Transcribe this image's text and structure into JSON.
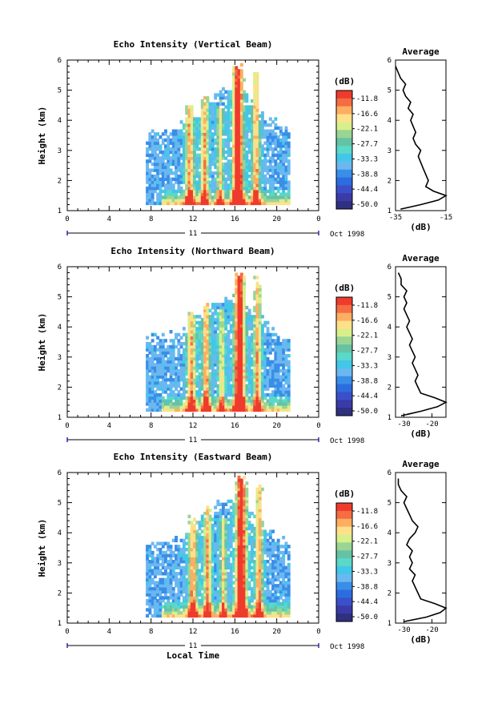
{
  "colorbar": {
    "unit": "(dB)",
    "labels": [
      "-11.8",
      "-16.6",
      "-22.1",
      "-27.7",
      "-33.3",
      "-38.8",
      "-44.4",
      "-50.0"
    ],
    "colors": [
      "#ef3b2c",
      "#f46d43",
      "#fdae61",
      "#fee08b",
      "#d9ef8b",
      "#99d594",
      "#66c2a5",
      "#5ad8c8",
      "#42c7e8",
      "#6bb8f0",
      "#3a8ee8",
      "#2b6dde",
      "#3b50c8",
      "#3a3aa8",
      "#303080"
    ]
  },
  "chart_data": [
    {
      "type": "heatmap",
      "title": "Echo Intensity (Vertical Beam)",
      "ylabel": "Height (km)",
      "xlabel": "",
      "x_ticks": [
        "0",
        "4",
        "8",
        "12",
        "16",
        "20",
        "0"
      ],
      "y_ticks": [
        "1",
        "2",
        "3",
        "4",
        "5",
        "6"
      ],
      "xlim": [
        0,
        24
      ],
      "ylim": [
        1,
        6
      ],
      "date_label": "11",
      "month_label": "Oct 1998",
      "average": {
        "title": "Average",
        "xlabel": "(dB)",
        "x_ticks": [
          "-35",
          "-15"
        ],
        "xlim": [
          -35,
          -15
        ],
        "y_ticks": [
          "1",
          "2",
          "3",
          "4",
          "5",
          "6"
        ],
        "height_km": [
          1.05,
          1.2,
          1.35,
          1.5,
          1.65,
          1.8,
          2.0,
          2.2,
          2.4,
          2.6,
          2.8,
          3.0,
          3.2,
          3.4,
          3.6,
          3.8,
          4.0,
          4.2,
          4.4,
          4.6,
          4.8,
          5.0,
          5.2,
          5.4,
          5.6,
          5.8
        ],
        "db": [
          -33,
          -25,
          -18,
          -15,
          -20,
          -23,
          -22,
          -23,
          -24,
          -25,
          -26,
          -25,
          -27,
          -28,
          -27,
          -28,
          -29,
          -28,
          -30,
          -29,
          -31,
          -32,
          -31,
          -33,
          -34,
          -35
        ]
      }
    },
    {
      "type": "heatmap",
      "title": "Echo Intensity (Northward Beam)",
      "ylabel": "Height (km)",
      "xlabel": "",
      "x_ticks": [
        "0",
        "4",
        "8",
        "12",
        "16",
        "20",
        "0"
      ],
      "y_ticks": [
        "1",
        "2",
        "3",
        "4",
        "5",
        "6"
      ],
      "xlim": [
        0,
        24
      ],
      "ylim": [
        1,
        6
      ],
      "date_label": "11",
      "month_label": "Oct 1998",
      "average": {
        "title": "Average",
        "xlabel": "(dB)",
        "x_ticks": [
          "-30",
          "-20"
        ],
        "xlim": [
          -33,
          -15
        ],
        "y_ticks": [
          "1",
          "2",
          "3",
          "4",
          "5",
          "6"
        ],
        "height_km": [
          1.05,
          1.2,
          1.35,
          1.5,
          1.65,
          1.8,
          2.0,
          2.2,
          2.4,
          2.6,
          2.8,
          3.0,
          3.2,
          3.4,
          3.6,
          3.8,
          4.0,
          4.2,
          4.4,
          4.6,
          4.8,
          5.0,
          5.2,
          5.4,
          5.6,
          5.8
        ],
        "db": [
          -31,
          -24,
          -18,
          -15,
          -19,
          -24,
          -25,
          -26,
          -25,
          -26,
          -27,
          -26,
          -27,
          -28,
          -27,
          -28,
          -29,
          -28,
          -29,
          -30,
          -29,
          -30,
          -29,
          -31,
          -31,
          -32
        ]
      }
    },
    {
      "type": "heatmap",
      "title": "Echo Intensity (Eastward Beam)",
      "ylabel": "Height (km)",
      "xlabel": "Local Time",
      "x_ticks": [
        "0",
        "4",
        "8",
        "12",
        "16",
        "20",
        "0"
      ],
      "y_ticks": [
        "1",
        "2",
        "3",
        "4",
        "5",
        "6"
      ],
      "xlim": [
        0,
        24
      ],
      "ylim": [
        1,
        6
      ],
      "date_label": "11",
      "month_label": "Oct 1998",
      "average": {
        "title": "Average",
        "xlabel": "(dB)",
        "x_ticks": [
          "-30",
          "-20"
        ],
        "xlim": [
          -33,
          -15
        ],
        "y_ticks": [
          "1",
          "2",
          "3",
          "4",
          "5",
          "6"
        ],
        "height_km": [
          1.05,
          1.2,
          1.35,
          1.5,
          1.65,
          1.8,
          2.0,
          2.2,
          2.4,
          2.6,
          2.8,
          3.0,
          3.2,
          3.4,
          3.6,
          3.8,
          4.0,
          4.2,
          4.4,
          4.6,
          4.8,
          5.0,
          5.2,
          5.4,
          5.6,
          5.8
        ],
        "db": [
          -30,
          -22,
          -17,
          -15,
          -19,
          -24,
          -25,
          -26,
          -27,
          -26,
          -28,
          -27,
          -28,
          -27,
          -29,
          -28,
          -26,
          -25,
          -27,
          -28,
          -29,
          -30,
          -29,
          -31,
          -32,
          -32
        ]
      }
    }
  ]
}
